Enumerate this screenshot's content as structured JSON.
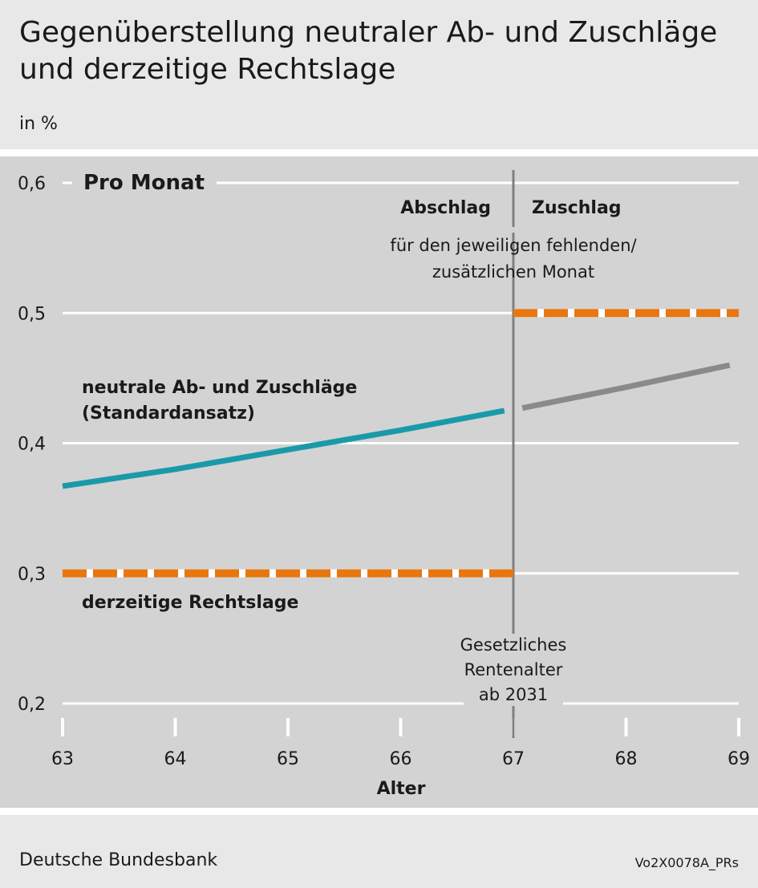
{
  "header": {
    "title_line1": "Gegenüberstellung neutraler Ab- und Zuschläge",
    "title_line2": "und derzeitige Rechtslage",
    "unit": "in %"
  },
  "footer": {
    "source": "Deutsche Bundesbank",
    "code": "Vo2X0078A_PRs"
  },
  "colors": {
    "teal": "#1a9aa8",
    "gray_line": "#8a8a8a",
    "orange": "#e8770f",
    "background": "#d3d3d3"
  },
  "chart_data": {
    "type": "line",
    "title": "Pro Monat",
    "xlabel": "Alter",
    "ylabel": "in %",
    "xlim": [
      63,
      69
    ],
    "ylim": [
      0.2,
      0.6
    ],
    "x_ticks": [
      "63",
      "64",
      "65",
      "66",
      "67",
      "68",
      "69"
    ],
    "y_ticks": [
      "0,2",
      "0,3",
      "0,4",
      "0,5",
      "0,6"
    ],
    "grid": true,
    "reference_line": {
      "x": 67
    },
    "annotations": {
      "left_region": "Abschlag",
      "right_region": "Zuschlag",
      "region_note_line1": "für den jeweiligen fehlenden/",
      "region_note_line2": "zusätzlichen Monat",
      "retirement_line1": "Gesetzliches",
      "retirement_line2": "Rentenalter",
      "retirement_line3": "ab 2031",
      "neutral_line1": "neutrale Ab- und Zuschläge",
      "neutral_line2": "(Standardansatz)",
      "current_law": "derzeitige Rechtslage"
    },
    "series": [
      {
        "name": "neutrale Ab- und Zuschläge (Standardansatz)",
        "segments": [
          {
            "x": [
              63.0,
              64.0,
              65.0,
              66.0,
              66.92
            ],
            "y": [
              0.367,
              0.38,
              0.395,
              0.41,
              0.425
            ],
            "color": "teal",
            "style": "solid"
          },
          {
            "x": [
              67.08,
              68.0,
              68.92
            ],
            "y": [
              0.427,
              0.443,
              0.46
            ],
            "color": "gray_line",
            "style": "solid"
          }
        ]
      },
      {
        "name": "derzeitige Rechtslage",
        "segments": [
          {
            "x": [
              63.0,
              67.0
            ],
            "y": [
              0.3,
              0.3
            ],
            "color": "orange",
            "style": "dashed"
          },
          {
            "x": [
              67.0,
              69.0
            ],
            "y": [
              0.5,
              0.5
            ],
            "color": "orange",
            "style": "dashed"
          }
        ]
      }
    ]
  }
}
